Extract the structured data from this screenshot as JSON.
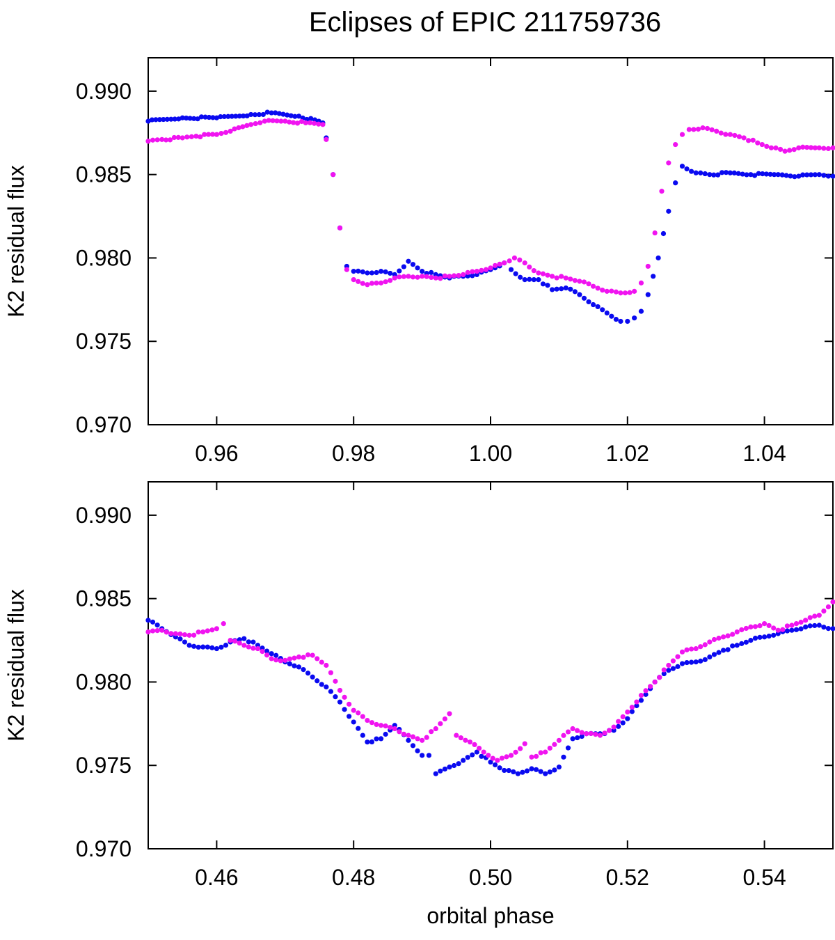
{
  "title": "Eclipses of EPIC 211759736",
  "colors": {
    "series_a": "#0a0af0",
    "series_b": "#f014f0",
    "axis": "#000000"
  },
  "chart_data": [
    {
      "type": "scatter",
      "panel": "top",
      "title": "Eclipses of EPIC 211759736",
      "xlabel": "",
      "ylabel": "K2 residual flux",
      "xlim": [
        0.95,
        1.05
      ],
      "ylim": [
        0.97,
        0.992
      ],
      "xticks": [
        0.96,
        0.98,
        1.0,
        1.02,
        1.04
      ],
      "xtick_labels": [
        "0.96",
        "0.98",
        "1.00",
        "1.02",
        "1.04"
      ],
      "yticks": [
        0.97,
        0.975,
        0.98,
        0.985,
        0.99
      ],
      "ytick_labels": [
        "0.970",
        "0.975",
        "0.980",
        "0.985",
        "0.990"
      ],
      "grid": false,
      "series": [
        {
          "color": "#0a0af0",
          "x": [
            0.95,
            0.955,
            0.96,
            0.965,
            0.968,
            0.972,
            0.9755,
            0.976,
            0.977,
            0.978,
            0.979,
            0.98,
            0.982,
            0.984,
            0.986,
            0.988,
            0.99,
            0.992,
            0.994,
            0.996,
            0.998,
            1.0,
            1.002,
            1.003,
            1.005,
            1.007,
            1.009,
            1.011,
            1.013,
            1.015,
            1.017,
            1.019,
            1.02,
            1.021,
            1.022,
            1.023,
            1.0245,
            1.026,
            1.027,
            1.028,
            1.03,
            1.032,
            1.035,
            1.038,
            1.042,
            1.045,
            1.048,
            1.05
          ],
          "y": [
            0.9882,
            0.9884,
            0.9884,
            0.9886,
            0.9887,
            0.9885,
            0.9881,
            0.9872,
            0.985,
            0.9818,
            0.9795,
            0.9792,
            0.9791,
            0.9792,
            0.979,
            0.9798,
            0.9792,
            0.979,
            0.9788,
            0.9789,
            0.979,
            0.9793,
            0.9797,
            0.9793,
            0.9787,
            0.9787,
            0.9781,
            0.9782,
            0.9778,
            0.9772,
            0.9767,
            0.9762,
            0.9762,
            0.9764,
            0.9768,
            0.9778,
            0.98,
            0.9828,
            0.9845,
            0.9855,
            0.9851,
            0.985,
            0.9851,
            0.985,
            0.985,
            0.9849,
            0.985,
            0.9849
          ]
        },
        {
          "color": "#f014f0",
          "x": [
            0.95,
            0.952,
            0.955,
            0.957,
            0.96,
            0.962,
            0.965,
            0.967,
            0.97,
            0.973,
            0.9755,
            0.976,
            0.977,
            0.978,
            0.979,
            0.98,
            0.982,
            0.984,
            0.986,
            0.988,
            0.99,
            0.992,
            0.994,
            0.996,
            0.998,
            1.0,
            1.002,
            1.0035,
            1.005,
            1.007,
            1.009,
            1.011,
            1.013,
            1.015,
            1.017,
            1.019,
            1.021,
            1.022,
            1.023,
            1.024,
            1.025,
            1.026,
            1.027,
            1.028,
            1.029,
            1.031,
            1.033,
            1.035,
            1.037,
            1.039,
            1.041,
            1.043,
            1.045,
            1.048,
            1.05
          ],
          "y": [
            0.987,
            0.9871,
            0.9872,
            0.9873,
            0.9874,
            0.9876,
            0.988,
            0.9882,
            0.9882,
            0.9881,
            0.988,
            0.9871,
            0.985,
            0.9818,
            0.9793,
            0.9787,
            0.9784,
            0.9785,
            0.9788,
            0.9789,
            0.9789,
            0.9788,
            0.9789,
            0.979,
            0.9792,
            0.9794,
            0.9797,
            0.98,
            0.9797,
            0.9791,
            0.9789,
            0.9788,
            0.9786,
            0.9783,
            0.978,
            0.9779,
            0.978,
            0.9785,
            0.9795,
            0.9815,
            0.984,
            0.9857,
            0.9868,
            0.9874,
            0.9877,
            0.9878,
            0.9876,
            0.9874,
            0.9872,
            0.9869,
            0.9866,
            0.9864,
            0.9866,
            0.9866,
            0.9866
          ]
        }
      ]
    },
    {
      "type": "scatter",
      "panel": "bottom",
      "xlabel": "orbital phase",
      "ylabel": "K2 residual flux",
      "xlim": [
        0.45,
        0.55
      ],
      "ylim": [
        0.97,
        0.992
      ],
      "xticks": [
        0.46,
        0.48,
        0.5,
        0.52,
        0.54
      ],
      "xtick_labels": [
        "0.46",
        "0.48",
        "0.50",
        "0.52",
        "0.54"
      ],
      "yticks": [
        0.97,
        0.975,
        0.98,
        0.985,
        0.99
      ],
      "ytick_labels": [
        "0.970",
        "0.975",
        "0.980",
        "0.985",
        "0.990"
      ],
      "grid": false,
      "series": [
        {
          "color": "#0a0af0",
          "x": [
            0.45,
            0.452,
            0.454,
            0.456,
            0.458,
            0.46,
            0.462,
            0.464,
            0.466,
            0.468,
            0.47,
            0.472,
            0.474,
            0.476,
            0.478,
            0.48,
            0.482,
            0.484,
            0.486,
            0.488,
            0.49,
            0.491,
            0.492,
            0.494,
            0.496,
            0.498,
            0.5,
            0.502,
            0.504,
            0.506,
            0.508,
            0.51,
            0.512,
            0.514,
            0.516,
            0.518,
            0.52,
            0.522,
            0.524,
            0.526,
            0.528,
            0.53,
            0.532,
            0.534,
            0.536,
            0.538,
            0.54,
            0.542,
            0.544,
            0.546,
            0.548,
            0.55
          ],
          "y": [
            0.9837,
            0.9832,
            0.9827,
            0.9822,
            0.9821,
            0.982,
            0.9824,
            0.9826,
            0.9822,
            0.9817,
            0.9812,
            0.9809,
            0.9803,
            0.9797,
            0.9788,
            0.9776,
            0.9764,
            0.9766,
            0.9774,
            0.9765,
            0.9756,
            0.9756,
            0.9745,
            0.9749,
            0.9753,
            0.9758,
            0.9752,
            0.9747,
            0.9745,
            0.9748,
            0.9745,
            0.9749,
            0.9766,
            0.9769,
            0.9769,
            0.9771,
            0.9778,
            0.9789,
            0.98,
            0.9807,
            0.9811,
            0.9812,
            0.9815,
            0.9819,
            0.9822,
            0.9825,
            0.9827,
            0.9829,
            0.9831,
            0.9833,
            0.9834,
            0.9832
          ]
        },
        {
          "color": "#f014f0",
          "x": [
            0.45,
            0.452,
            0.454,
            0.456,
            0.458,
            0.46,
            0.461,
            0.462,
            0.464,
            0.466,
            0.468,
            0.47,
            0.472,
            0.474,
            0.476,
            0.478,
            0.48,
            0.482,
            0.484,
            0.486,
            0.488,
            0.49,
            0.492,
            0.494,
            0.495,
            0.497,
            0.499,
            0.501,
            0.503,
            0.505,
            0.506,
            0.508,
            0.51,
            0.512,
            0.514,
            0.516,
            0.518,
            0.52,
            0.522,
            0.524,
            0.526,
            0.528,
            0.53,
            0.532,
            0.534,
            0.536,
            0.538,
            0.54,
            0.542,
            0.544,
            0.546,
            0.548,
            0.55
          ],
          "y": [
            0.983,
            0.9831,
            0.9829,
            0.9828,
            0.983,
            0.9832,
            0.9835,
            0.9825,
            0.9822,
            0.982,
            0.9814,
            0.9813,
            0.9815,
            0.9816,
            0.981,
            0.9795,
            0.9783,
            0.9777,
            0.9774,
            0.9772,
            0.9768,
            0.9765,
            0.9772,
            0.9781,
            0.9768,
            0.9764,
            0.9758,
            0.9753,
            0.9756,
            0.9763,
            0.9755,
            0.9758,
            0.9765,
            0.9772,
            0.9769,
            0.9768,
            0.9773,
            0.9782,
            0.9792,
            0.98,
            0.981,
            0.9818,
            0.982,
            0.9824,
            0.9827,
            0.983,
            0.9833,
            0.9835,
            0.9831,
            0.9834,
            0.9837,
            0.984,
            0.9848
          ]
        }
      ]
    }
  ]
}
